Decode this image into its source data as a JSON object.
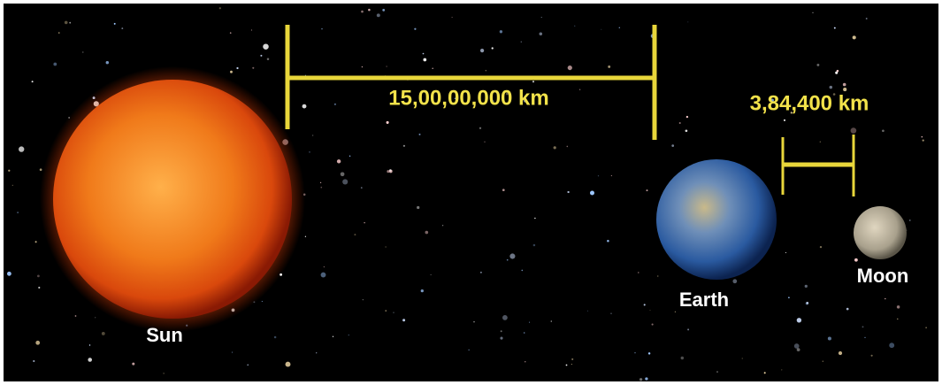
{
  "labels": {
    "sun": "Sun",
    "earth": "Earth",
    "moon": "Moon"
  },
  "distances": {
    "sun_earth": "15,00,00,000 km",
    "earth_moon": "3,84,400 km"
  }
}
